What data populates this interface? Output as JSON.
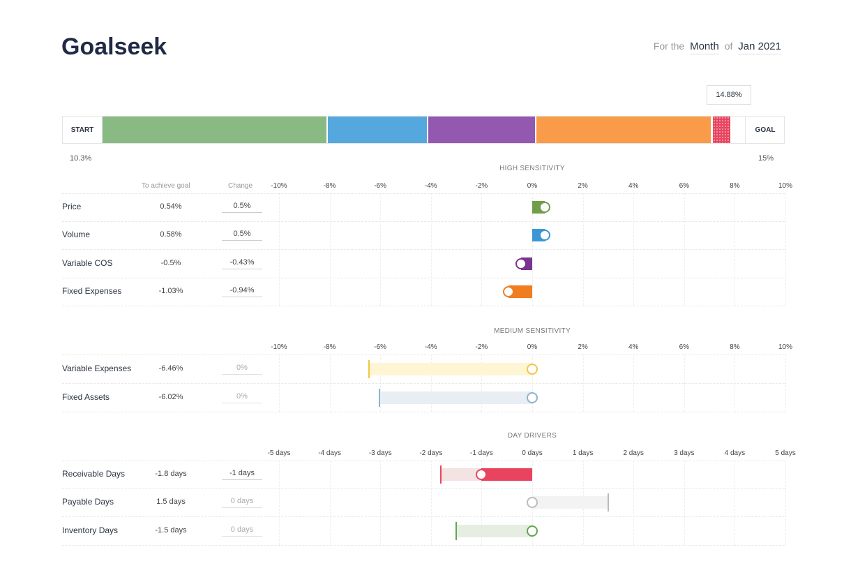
{
  "header": {
    "title": "Goalseek",
    "period_prefix": "For the",
    "period_unit": "Month",
    "period_of": "of",
    "period_value": "Jan 2021"
  },
  "progress": {
    "start_label": "START",
    "goal_label": "GOAL",
    "start_value": "10.3%",
    "goal_value": "15%",
    "current_tooltip": "14.88%",
    "segments": [
      {
        "name": "Price",
        "color": "#8aba84"
      },
      {
        "name": "Volume",
        "color": "#55a8de"
      },
      {
        "name": "Variable COS",
        "color": "#9358b0"
      },
      {
        "name": "Fixed Expenses",
        "color": "#f99b48"
      },
      {
        "name": "Receivable Days",
        "color": "#e8445f"
      }
    ]
  },
  "columns": {
    "to_achieve": "To achieve goal",
    "change": "Change"
  },
  "chart_data": [
    {
      "type": "bar",
      "title": "HIGH SENSITIVITY",
      "unit": "%",
      "xlim": [
        -10,
        10
      ],
      "ticks": [
        "-10%",
        "-8%",
        "-6%",
        "-4%",
        "-2%",
        "0%",
        "2%",
        "4%",
        "6%",
        "8%",
        "10%"
      ],
      "rows": [
        {
          "label": "Price",
          "to_achieve": "0.54%",
          "change": "0.5%",
          "change_value": 0.5,
          "color": "#6f9e4a"
        },
        {
          "label": "Volume",
          "to_achieve": "0.58%",
          "change": "0.5%",
          "change_value": 0.5,
          "color": "#3c97d6"
        },
        {
          "label": "Variable COS",
          "to_achieve": "-0.5%",
          "change": "-0.43%",
          "change_value": -0.43,
          "color": "#7b3590"
        },
        {
          "label": "Fixed Expenses",
          "to_achieve": "-1.03%",
          "change": "-0.94%",
          "change_value": -0.94,
          "color": "#f07d1f"
        }
      ]
    },
    {
      "type": "bar",
      "title": "MEDIUM SENSITIVITY",
      "unit": "%",
      "xlim": [
        -10,
        10
      ],
      "ticks": [
        "-10%",
        "-8%",
        "-6%",
        "-4%",
        "-2%",
        "0%",
        "2%",
        "4%",
        "6%",
        "8%",
        "10%"
      ],
      "rows": [
        {
          "label": "Variable Expenses",
          "to_achieve": "-6.46%",
          "target_value": -6.46,
          "change": "0%",
          "change_value": 0,
          "color": "#f2c744",
          "fill": "#fdf5d4"
        },
        {
          "label": "Fixed Assets",
          "to_achieve": "-6.02%",
          "target_value": -6.02,
          "change": "0%",
          "change_value": 0,
          "color": "#8fb3c8",
          "fill": "#e8eef3"
        }
      ]
    },
    {
      "type": "bar",
      "title": "DAY DRIVERS",
      "unit": "days",
      "xlim": [
        -5,
        5
      ],
      "ticks": [
        "-5 days",
        "-4 days",
        "-3 days",
        "-2 days",
        "-1 days",
        "0 days",
        "1 days",
        "2 days",
        "3 days",
        "4 days",
        "5 days"
      ],
      "rows": [
        {
          "label": "Receivable Days",
          "to_achieve": "-1.8 days",
          "target_value": -1.8,
          "change": "-1 days",
          "change_value": -1,
          "color": "#e8445f",
          "fill": "#f3e3e2"
        },
        {
          "label": "Payable Days",
          "to_achieve": "1.5 days",
          "target_value": 1.5,
          "change": "0 days",
          "change_value": 0,
          "color": "#bbbbbb",
          "fill": "#f3f3f3"
        },
        {
          "label": "Inventory Days",
          "to_achieve": "-1.5 days",
          "target_value": -1.5,
          "change": "0 days",
          "change_value": 0,
          "color": "#5fa84f",
          "fill": "#e6eee3"
        }
      ]
    }
  ]
}
